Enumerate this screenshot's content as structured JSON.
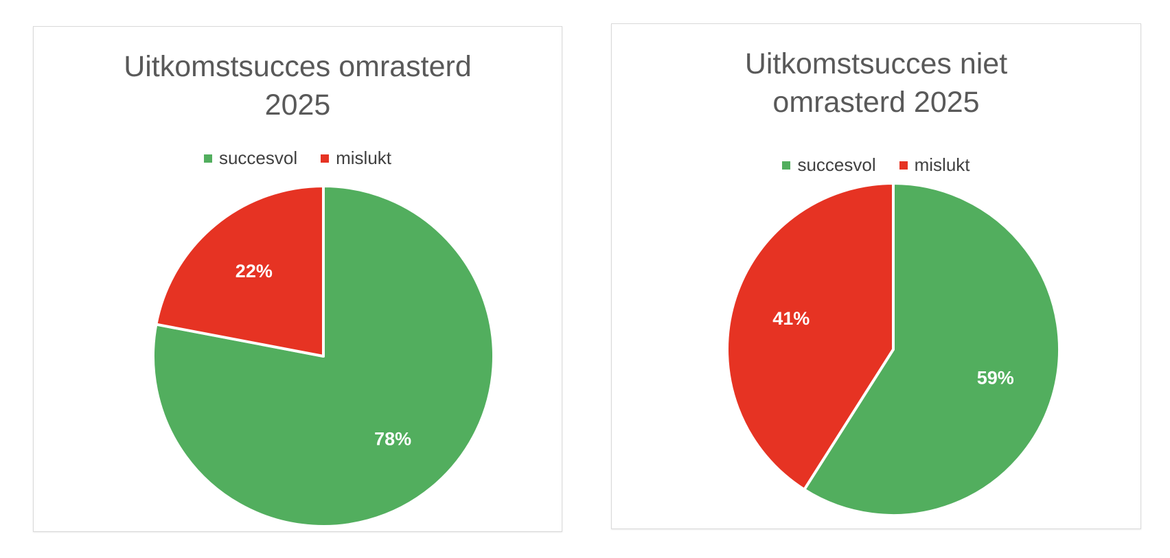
{
  "chart_data": [
    {
      "type": "pie",
      "title": "Uitkomstsucces omrasterd 2025",
      "legend_position": "top",
      "categories": [
        "succesvol",
        "mislukt"
      ],
      "values": [
        78,
        22
      ],
      "labels": [
        "78%",
        "22%"
      ],
      "colors": [
        "#52ae5e",
        "#e63323"
      ]
    },
    {
      "type": "pie",
      "title": "Uitkomstsucces niet omrasterd 2025",
      "legend_position": "top",
      "categories": [
        "succesvol",
        "mislukt"
      ],
      "values": [
        59,
        41
      ],
      "labels": [
        "59%",
        "41%"
      ],
      "colors": [
        "#52ae5e",
        "#e63323"
      ]
    }
  ]
}
